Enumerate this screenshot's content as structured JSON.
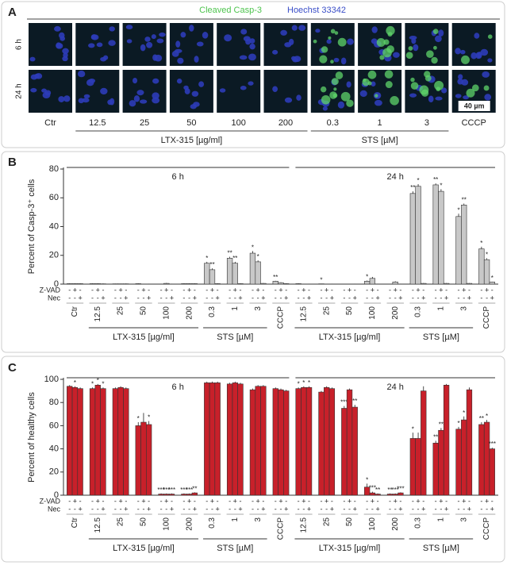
{
  "panel_a": {
    "label": "A",
    "stain_1": "Cleaved Casp-3",
    "stain_2": "Hoechst 33342",
    "rows": [
      "6 h",
      "24 h"
    ],
    "columns": [
      "Ctr",
      "12.5",
      "25",
      "50",
      "100",
      "200",
      "0.3",
      "1",
      "3",
      "CCCP"
    ],
    "groups": [
      "LTX-315 [µg/ml]",
      "STS [µM]"
    ],
    "scale_bar": "40 µm"
  },
  "chart_data": [
    {
      "type": "bar",
      "panel": "B",
      "ylabel": "Percent of Casp-3⁺ cells",
      "categories": [
        "Ctr",
        "12.5",
        "25",
        "50",
        "100",
        "200",
        "0.3",
        "1",
        "3",
        "CCCP",
        "12.5",
        "25",
        "50",
        "100",
        "200",
        "0.3",
        "1",
        "3",
        "CCCP"
      ],
      "periods": [
        "6 h",
        "24 h"
      ],
      "groups": [
        "LTX-315 [µg/ml]",
        "STS [µM]"
      ],
      "zvad_label": "Z-VAD",
      "zvad": [
        "-",
        "+",
        "-"
      ],
      "nec_label": "Nec",
      "nec": [
        "-",
        "-",
        "+"
      ],
      "ylim": [
        0,
        80
      ],
      "yticks": [
        0,
        20,
        40,
        60,
        80
      ],
      "series": [
        {
          "color": "#c8c8c8",
          "values": [
            0.3,
            0.3,
            0.2,
            0.3,
            0,
            0.3,
            14.5,
            18,
            21.5,
            2,
            0.3,
            0.2,
            0,
            2,
            0,
            63,
            69,
            47,
            24.5
          ],
          "errors": [
            0.2,
            0.2,
            0.1,
            0.2,
            0,
            0.2,
            1,
            1,
            1.5,
            0.3,
            0.2,
            0.1,
            0,
            0.5,
            0,
            1.5,
            1,
            2,
            1.5
          ],
          "annotations": [
            null,
            null,
            null,
            null,
            null,
            null,
            "*",
            "**",
            "*",
            "**",
            null,
            "*",
            null,
            "*",
            null,
            "**",
            "**",
            "*",
            "*"
          ]
        },
        {
          "color": "#c8c8c8",
          "values": [
            0.3,
            0.3,
            0.2,
            0,
            0.5,
            0.3,
            10,
            14.5,
            15.5,
            1,
            0,
            0,
            0,
            4,
            1.5,
            68,
            64.5,
            55,
            17
          ],
          "errors": [
            0.2,
            0.2,
            0.1,
            0,
            0.3,
            0.2,
            1,
            1,
            1,
            0.3,
            0,
            0,
            0,
            1,
            0.5,
            1.5,
            1.5,
            1,
            1
          ],
          "annotations": [
            null,
            null,
            null,
            null,
            null,
            null,
            "**",
            "**",
            "*",
            null,
            null,
            null,
            null,
            null,
            null,
            "*",
            "*",
            "**",
            "*"
          ]
        },
        {
          "color": "#c8c8c8",
          "values": [
            0.3,
            0.2,
            0.2,
            0,
            0,
            0.3,
            0.3,
            0.3,
            0.5,
            0.3,
            0,
            0,
            0,
            0,
            0,
            0.5,
            0.5,
            0.5,
            1.5
          ],
          "errors": [
            0.2,
            0.2,
            0.2,
            0.2,
            0.2,
            0.2,
            0.2,
            0.2,
            0.2,
            0.2,
            0.2,
            0.2,
            0.2,
            0.2,
            0.2,
            0.2,
            0.2,
            0.2,
            0.2
          ],
          "annotations": [
            null,
            null,
            null,
            null,
            null,
            null,
            null,
            null,
            null,
            null,
            null,
            null,
            null,
            null,
            null,
            null,
            null,
            null,
            "*"
          ]
        }
      ]
    },
    {
      "type": "bar",
      "panel": "C",
      "ylabel": "Percent of healthy cells",
      "categories": [
        "Ctr",
        "12.5",
        "25",
        "50",
        "100",
        "200",
        "0.3",
        "1",
        "3",
        "CCCP",
        "12.5",
        "25",
        "50",
        "100",
        "200",
        "0.3",
        "1",
        "3",
        "CCCP"
      ],
      "periods": [
        "6 h",
        "24 h"
      ],
      "groups": [
        "LTX-315 [µg/ml]",
        "STS [µM]"
      ],
      "zvad_label": "Z-VAD",
      "zvad": [
        "-",
        "+",
        "-"
      ],
      "nec_label": "Nec",
      "nec": [
        "-",
        "-",
        "+"
      ],
      "ylim": [
        0,
        100
      ],
      "yticks": [
        0,
        20,
        40,
        60,
        80,
        100
      ],
      "series": [
        {
          "color": "#c8202a",
          "values": [
            94,
            92,
            92,
            60,
            1,
            1,
            97,
            96,
            91,
            92,
            92,
            89,
            75,
            7,
            1,
            49,
            45,
            57,
            61
          ],
          "errors": [
            1,
            1,
            1,
            3,
            0.5,
            0.5,
            1,
            1,
            1,
            1,
            1,
            1,
            2,
            3,
            0.5,
            5,
            2,
            2,
            2
          ],
          "annotations": [
            null,
            "*",
            null,
            "*",
            "***",
            "***",
            null,
            null,
            null,
            null,
            "*",
            null,
            "***",
            "*",
            "**",
            "*",
            "**",
            "*",
            "**"
          ]
        },
        {
          "color": "#c8202a",
          "values": [
            93,
            95,
            93,
            63,
            1,
            1,
            97,
            97,
            94,
            91,
            93,
            93,
            91,
            2,
            1,
            49,
            56,
            65,
            63
          ],
          "errors": [
            1,
            1,
            1,
            8,
            0.5,
            0.5,
            1,
            1,
            1,
            1,
            1,
            1,
            1,
            1,
            0.5,
            5,
            2,
            3,
            2
          ],
          "annotations": [
            "*",
            "*",
            null,
            null,
            "***",
            "***",
            null,
            null,
            null,
            null,
            "*",
            null,
            null,
            "***",
            "***",
            null,
            "**",
            "*",
            "*"
          ]
        },
        {
          "color": "#c8202a",
          "values": [
            92,
            92,
            92,
            61,
            1,
            2,
            97,
            96,
            94,
            90,
            93,
            92,
            76,
            1,
            2,
            90,
            95,
            91,
            40
          ],
          "errors": [
            1,
            1,
            1,
            3,
            0.5,
            0.5,
            1,
            1,
            1,
            1,
            1,
            1,
            2,
            0.5,
            0.5,
            4,
            1,
            2,
            1
          ],
          "annotations": [
            null,
            "*",
            null,
            "*",
            "***",
            "**",
            null,
            null,
            null,
            null,
            "*",
            null,
            "**",
            "**",
            "***",
            null,
            null,
            null,
            "***"
          ]
        }
      ]
    }
  ]
}
